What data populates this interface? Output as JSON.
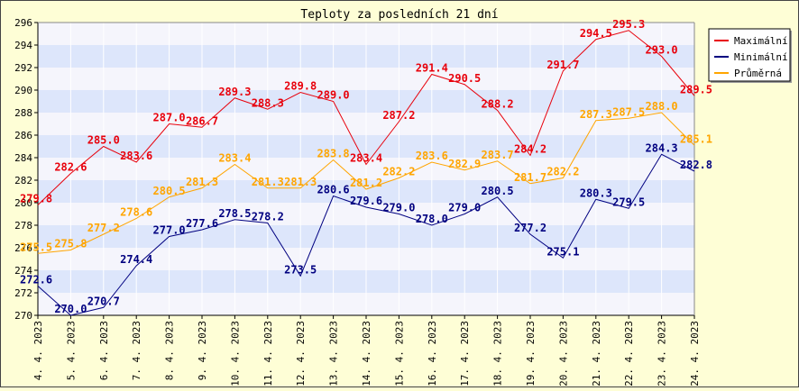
{
  "chart_data": {
    "type": "line",
    "title": "Teploty za posledních 21 dní",
    "xlabel": "",
    "ylabel": "",
    "ylim": [
      270,
      296
    ],
    "yticks": [
      "270",
      "272",
      "274",
      "276",
      "278",
      "280",
      "282",
      "284",
      "286",
      "288",
      "290",
      "292",
      "294",
      "296"
    ],
    "grid": true,
    "legend_position": "top-right",
    "categories": [
      "4. 4. 2023",
      "5. 4. 2023",
      "6. 4. 2023",
      "7. 4. 2023",
      "8. 4. 2023",
      "9. 4. 2023",
      "10. 4. 2023",
      "11. 4. 2023",
      "12. 4. 2023",
      "13. 4. 2023",
      "14. 4. 2023",
      "15. 4. 2023",
      "16. 4. 2023",
      "17. 4. 2023",
      "18. 4. 2023",
      "19. 4. 2023",
      "20. 4. 2023",
      "21. 4. 2023",
      "22. 4. 2023",
      "23. 4. 2023",
      "24. 4. 2023"
    ],
    "series": [
      {
        "name": "Maximální",
        "color": "#e8000b",
        "values": [
          279.8,
          282.6,
          285.0,
          283.6,
          287.0,
          286.7,
          289.3,
          288.3,
          289.8,
          289.0,
          283.4,
          287.2,
          291.4,
          290.5,
          288.2,
          284.2,
          291.7,
          294.5,
          295.3,
          293.0,
          289.5
        ],
        "labels": [
          "279.8",
          "282.6",
          "285.0",
          "283.6",
          "287.0",
          "286.7",
          "289.3",
          "288.3",
          "289.8",
          "289.0",
          "283.4",
          "287.2",
          "291.4",
          "290.5",
          "288.2",
          "284.2",
          "291.7",
          "294.5",
          "295.3",
          "293.0",
          "289.5"
        ]
      },
      {
        "name": "Minimální",
        "color": "#000080",
        "values": [
          272.6,
          270.0,
          270.7,
          274.4,
          277.0,
          277.6,
          278.5,
          278.2,
          273.5,
          280.6,
          279.6,
          279.0,
          278.0,
          279.0,
          280.5,
          277.2,
          275.1,
          280.3,
          279.5,
          284.3,
          282.8
        ],
        "labels": [
          "272.6",
          "270.0",
          "270.7",
          "274.4",
          "277.0",
          "277.6",
          "278.5",
          "278.2",
          "273.5",
          "280.6",
          "279.6",
          "279.0",
          "278.0",
          "279.0",
          "280.5",
          "277.2",
          "275.1",
          "280.3",
          "279.5",
          "284.3",
          "282.8"
        ]
      },
      {
        "name": "Průměrná",
        "color": "#ffa500",
        "values": [
          275.5,
          275.8,
          277.2,
          278.6,
          280.5,
          281.3,
          283.4,
          281.3,
          281.3,
          283.8,
          281.2,
          282.2,
          283.6,
          282.9,
          283.7,
          281.7,
          282.2,
          287.3,
          287.5,
          288.0,
          285.1
        ],
        "labels": [
          "275.5",
          "275.8",
          "277.2",
          "278.6",
          "280.5",
          "281.3",
          "283.4",
          "281.3",
          "281.3",
          "283.8",
          "281.2",
          "282.2",
          "283.6",
          "282.9",
          "283.7",
          "281.7",
          "282.2",
          "287.3",
          "287.5",
          "288.0",
          "285.1"
        ]
      }
    ]
  }
}
